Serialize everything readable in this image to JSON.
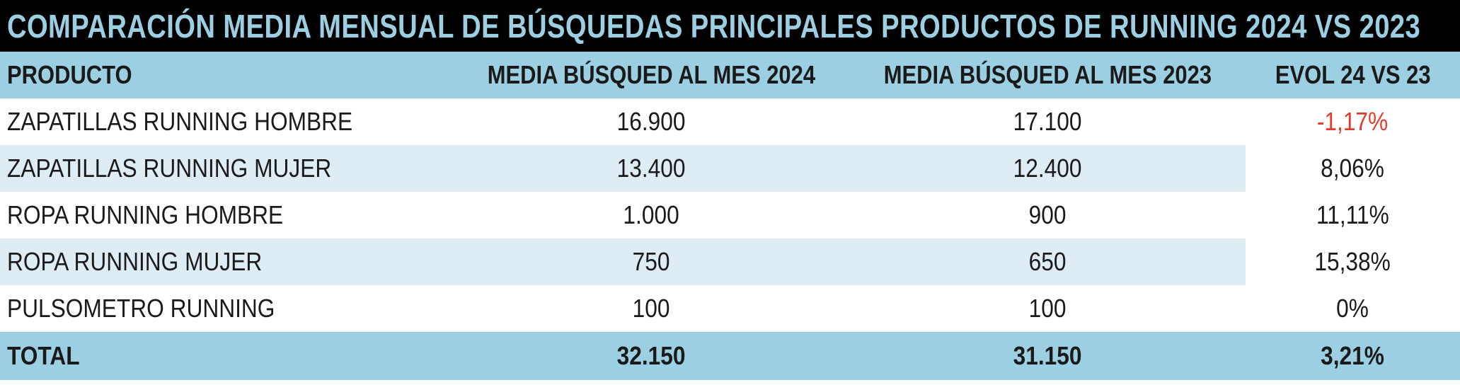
{
  "title": "COMPARACIÓN MEDIA MENSUAL DE BÚSQUEDAS PRINCIPALES PRODUCTOS DE RUNNING 2024 VS 2023",
  "colors": {
    "header_bg": "#9ccfe2",
    "title_bg": "#000000",
    "title_text": "#9ccfe2",
    "stripe_bg": "#ddedf3",
    "negative_text": "#e23a2b"
  },
  "headers": {
    "producto": "PRODUCTO",
    "media_2024": "MEDIA BÚSQUED AL MES 2024",
    "media_2023": "MEDIA BÚSQUED AL MES 2023",
    "evol": "EVOL 24 VS 23"
  },
  "rows": [
    {
      "producto": "ZAPATILLAS RUNNING HOMBRE",
      "media_2024": "16.900",
      "media_2023": "17.100",
      "evol": "-1,17%"
    },
    {
      "producto": "ZAPATILLAS RUNNING MUJER",
      "media_2024": "13.400",
      "media_2023": "12.400",
      "evol": "8,06%"
    },
    {
      "producto": "ROPA RUNNING HOMBRE",
      "media_2024": "1.000",
      "media_2023": "900",
      "evol": "11,11%"
    },
    {
      "producto": "ROPA RUNNING MUJER",
      "media_2024": "750",
      "media_2023": "650",
      "evol": "15,38%"
    },
    {
      "producto": "PULSOMETRO RUNNING",
      "media_2024": "100",
      "media_2023": "100",
      "evol": "0%"
    }
  ],
  "total": {
    "producto": "TOTAL",
    "media_2024": "32.150",
    "media_2023": "31.150",
    "evol": "3,21%"
  }
}
